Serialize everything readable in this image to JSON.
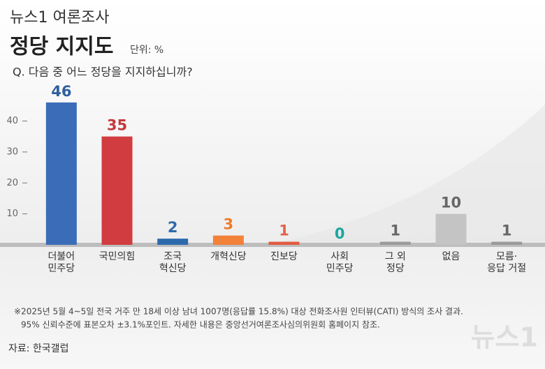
{
  "header": {
    "series_title": "뉴스1 여론조사",
    "title": "정당 지지도",
    "unit": "단위: %",
    "question": "Q. 다음 중 어느 정당을 지지하십니까?"
  },
  "chart_data": {
    "type": "bar",
    "categories": [
      "더불어\n민주당",
      "국민의힘",
      "조국\n혁신당",
      "개혁신당",
      "진보당",
      "사회\n민주당",
      "그 외\n정당",
      "없음",
      "모름·\n응답 거절"
    ],
    "values": [
      46,
      35,
      2,
      3,
      1,
      0,
      1,
      10,
      1
    ],
    "colors": [
      "#3b6cb7",
      "#d13c40",
      "#2d6aad",
      "#f2813a",
      "#e15b3e",
      "#1aa6a0",
      "#9a9a9a",
      "#c4c4c4",
      "#9a9a9a"
    ],
    "label_colors": [
      "#2f5f9e",
      "#c4383b",
      "#2d6aad",
      "#f07a2a",
      "#e0654a",
      "#1aa6a0",
      "#666666",
      "#666666",
      "#666666"
    ],
    "ylim": [
      0,
      48
    ],
    "yticks": [
      10,
      20,
      30,
      40
    ]
  },
  "notes": [
    "※2025년 5월 4~5일 전국 거주 만 18세 이상 남녀 1007명(응답률 15.8%) 대상 전화조사원 인터뷰(CATI) 방식의 조사 결과.",
    "95% 신뢰수준에 표본오차 ±3.1%포인트. 자세한 내용은 중앙선거여론조사심의위원회 홈페이지 참조."
  ],
  "source": "자료: 한국갤럽",
  "watermark": "뉴스1"
}
